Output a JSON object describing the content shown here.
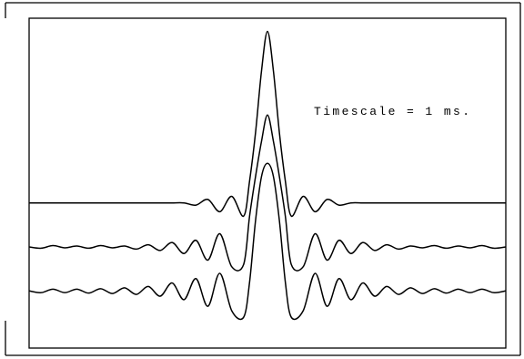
{
  "chart_data": {
    "type": "line",
    "annotation": "Timescale = 1 ms.",
    "grid": false,
    "legend": "none",
    "x": [
      -10,
      -9.5,
      -9,
      -8.5,
      -8,
      -7.5,
      -7,
      -6.5,
      -6,
      -5.5,
      -5,
      -4.5,
      -4,
      -3.5,
      -3,
      -2.5,
      -2,
      -1.5,
      -1,
      -0.75,
      -0.5,
      -0.25,
      0,
      0.25,
      0.5,
      0.75,
      1,
      1.5,
      2,
      2.5,
      3,
      3.5,
      4,
      4.5,
      5,
      5.5,
      6,
      6.5,
      7,
      7.5,
      8,
      8.5,
      9,
      9.5,
      10
    ],
    "xlim": [
      -10,
      10
    ],
    "ylim": [
      -3.3,
      4.2
    ],
    "series": [
      {
        "values": [
          0,
          0,
          0,
          0,
          0,
          0,
          0,
          0,
          0,
          0,
          0,
          0,
          0,
          0,
          -0.05,
          0.08,
          -0.2,
          0.15,
          -0.3,
          0.5,
          1.6,
          3.0,
          3.9,
          3.0,
          1.6,
          0.5,
          -0.3,
          0.15,
          -0.2,
          0.08,
          -0.05,
          0,
          0,
          0,
          0,
          0,
          0,
          0,
          0,
          0,
          0,
          0,
          0,
          0,
          0
        ]
      },
      {
        "values": [
          -1.0,
          -1.03,
          -0.97,
          -1.02,
          -0.98,
          -1.03,
          -0.97,
          -1.02,
          -0.98,
          -1.05,
          -0.95,
          -1.08,
          -0.9,
          -1.15,
          -0.85,
          -1.3,
          -0.7,
          -1.45,
          -1.4,
          -0.3,
          0.6,
          1.4,
          2.0,
          1.4,
          0.6,
          -0.3,
          -1.4,
          -1.45,
          -0.7,
          -1.3,
          -0.85,
          -1.15,
          -0.9,
          -1.08,
          -0.95,
          -1.05,
          -0.98,
          -1.02,
          -0.97,
          -1.03,
          -0.98,
          -1.02,
          -0.97,
          -1.03,
          -1.0
        ]
      },
      {
        "values": [
          -2.0,
          -2.04,
          -1.96,
          -2.04,
          -1.96,
          -2.05,
          -1.95,
          -2.06,
          -1.93,
          -2.08,
          -1.9,
          -2.12,
          -1.82,
          -2.2,
          -1.72,
          -2.35,
          -1.6,
          -2.45,
          -2.6,
          -1.8,
          -0.4,
          0.6,
          0.9,
          0.6,
          -0.4,
          -1.8,
          -2.6,
          -2.45,
          -1.6,
          -2.35,
          -1.72,
          -2.2,
          -1.82,
          -2.12,
          -1.9,
          -2.08,
          -1.93,
          -2.06,
          -1.95,
          -2.05,
          -1.96,
          -2.04,
          -1.96,
          -2.04,
          -2.0
        ]
      }
    ]
  }
}
